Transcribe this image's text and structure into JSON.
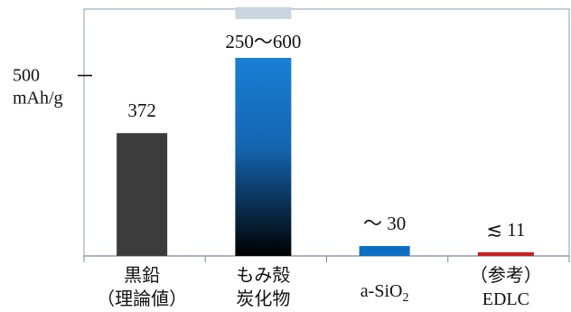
{
  "chart_data": {
    "type": "bar",
    "title": "",
    "xlabel": "",
    "ylabel": "",
    "ylim": [
      0,
      600
    ],
    "y_tick": {
      "value": 500,
      "label_value": "500",
      "label_unit": "mAh/g"
    },
    "categories": [
      {
        "line1": "黒鉛",
        "line2": "（理論値）"
      },
      {
        "line1": "もみ殻",
        "line2": "炭化物"
      },
      {
        "line1": "a-SiO",
        "line2": "",
        "subscript": "2"
      },
      {
        "line1": "（参考）",
        "line2": "EDLC"
      }
    ],
    "values": [
      372,
      600,
      30,
      11
    ],
    "range_low": [
      null,
      250,
      null,
      null
    ],
    "data_labels": [
      "372",
      "250～600",
      "～ 30",
      "≲ 11"
    ],
    "colors": [
      "#3c3c3c",
      "#1a7fd4",
      "#0d6ec4",
      "#c81e1e"
    ],
    "gradient_bar": {
      "index": 1,
      "top": "#1a7fd4",
      "bottom": "#000000"
    },
    "range_cap_color": "#c8d4e0",
    "grid": false
  }
}
